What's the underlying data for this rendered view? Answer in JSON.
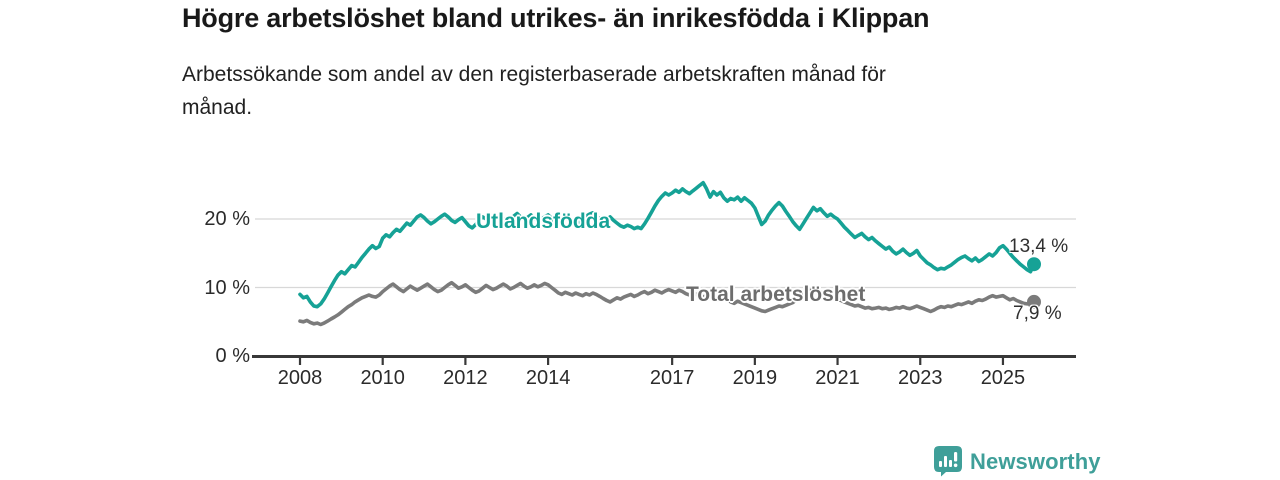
{
  "title": "Högre arbetslöshet bland utrikes- än inrikesfödda i Klippan",
  "subtitle": "Arbetssökande som andel av den registerbaserade arbetskraften månad för månad.",
  "logo": {
    "text": "Newsworthy",
    "icon": "newsworthy-speech-bubble-bar-chart-icon",
    "color": "#3f9f99"
  },
  "colors": {
    "accent_teal": "#16a296",
    "series_gray": "#7b7b7b",
    "series_gray_label": "#6d6d6d",
    "axis": "#383838",
    "gridline": "#d8d8d8",
    "tick_text": "#2b2b2b"
  },
  "chart_data": {
    "type": "line",
    "title": "Högre arbetslöshet bland utrikes- än inrikesfödda i Klippan",
    "subtitle": "Arbetssökande som andel av den registerbaserade arbetskraften månad för månad.",
    "x_unit": "month",
    "x_start_year": 2008,
    "x_start_month": 1,
    "x_end_year": 2025,
    "x_end_month": 10,
    "ylim": [
      0,
      27
    ],
    "grid": "horizontal",
    "y_ticks": [
      {
        "label": "0 %",
        "value": 0
      },
      {
        "label": "10 %",
        "value": 10
      },
      {
        "label": "20 %",
        "value": 20
      }
    ],
    "x_ticks": [
      {
        "label": "2008",
        "year": 2008
      },
      {
        "label": "2010",
        "year": 2010
      },
      {
        "label": "2012",
        "year": 2012
      },
      {
        "label": "2014",
        "year": 2014
      },
      {
        "label": "2017",
        "year": 2017
      },
      {
        "label": "2019",
        "year": 2019
      },
      {
        "label": "2021",
        "year": 2021
      },
      {
        "label": "2023",
        "year": 2023
      },
      {
        "label": "2025",
        "year": 2025
      }
    ],
    "series": [
      {
        "name": "Utlandsfödda",
        "label": "Utlandsfödda",
        "end_label": "13,4 %",
        "end_value": 13.4,
        "color": "#16a296",
        "label_color": "#16a296",
        "values": [
          9.0,
          8.5,
          8.7,
          7.9,
          7.3,
          7.2,
          7.6,
          8.3,
          9.2,
          10.1,
          11.0,
          11.8,
          12.3,
          12.0,
          12.6,
          13.2,
          13.0,
          13.7,
          14.4,
          15.0,
          15.6,
          16.1,
          15.7,
          16.0,
          17.2,
          17.7,
          17.4,
          18.0,
          18.5,
          18.2,
          18.8,
          19.4,
          19.1,
          19.7,
          20.3,
          20.6,
          20.2,
          19.7,
          19.3,
          19.6,
          20.0,
          20.4,
          20.7,
          20.3,
          19.8,
          19.5,
          19.9,
          20.2,
          19.6,
          19.0,
          18.7,
          19.2,
          19.8,
          20.3,
          20.0,
          19.5,
          19.8,
          20.2,
          20.5,
          20.1,
          19.7,
          20.0,
          20.4,
          20.8,
          20.3,
          19.9,
          20.2,
          20.6,
          20.1,
          19.8,
          20.0,
          20.3,
          20.6,
          20.1,
          19.7,
          19.4,
          19.8,
          20.2,
          19.9,
          19.5,
          19.2,
          19.6,
          20.0,
          20.4,
          20.7,
          20.9,
          20.4,
          20.0,
          19.6,
          19.9,
          20.3,
          19.8,
          19.4,
          19.0,
          18.8,
          19.1,
          18.9,
          18.6,
          18.8,
          18.6,
          19.3,
          20.1,
          21.0,
          21.9,
          22.7,
          23.3,
          23.8,
          23.5,
          23.8,
          24.2,
          23.9,
          24.4,
          24.0,
          23.7,
          24.1,
          24.5,
          24.9,
          25.3,
          24.4,
          23.2,
          24.0,
          23.5,
          23.9,
          23.1,
          22.6,
          23.0,
          22.8,
          23.2,
          22.6,
          23.1,
          22.7,
          22.3,
          21.6,
          20.4,
          19.2,
          19.7,
          20.6,
          21.3,
          21.9,
          22.4,
          21.9,
          21.1,
          20.4,
          19.6,
          19.0,
          18.5,
          19.3,
          20.1,
          20.9,
          21.7,
          21.2,
          21.5,
          20.9,
          20.4,
          20.7,
          20.3,
          20.0,
          19.4,
          18.8,
          18.3,
          17.8,
          17.3,
          17.6,
          17.9,
          17.4,
          17.0,
          17.3,
          16.8,
          16.4,
          16.0,
          15.6,
          15.9,
          15.3,
          14.9,
          15.2,
          15.6,
          15.1,
          14.7,
          15.0,
          15.4,
          14.6,
          14.1,
          13.6,
          13.3,
          12.9,
          12.6,
          12.8,
          12.7,
          13.0,
          13.3,
          13.7,
          14.1,
          14.4,
          14.6,
          14.2,
          13.9,
          14.3,
          13.8,
          14.1,
          14.5,
          14.9,
          14.6,
          15.1,
          15.8,
          16.1,
          15.6,
          15.0,
          14.4,
          13.9,
          13.4,
          13.0,
          12.6,
          12.3,
          13.4
        ]
      },
      {
        "name": "Total arbetslöshet",
        "label": "Total arbetslöshet",
        "end_label": "7,9 %",
        "end_value": 7.9,
        "color": "#7b7b7b",
        "label_color": "#6d6d6d",
        "values": [
          5.1,
          5.0,
          5.2,
          4.9,
          4.7,
          4.8,
          4.6,
          4.8,
          5.1,
          5.4,
          5.7,
          6.0,
          6.4,
          6.8,
          7.2,
          7.5,
          7.9,
          8.2,
          8.5,
          8.7,
          8.9,
          8.7,
          8.6,
          8.9,
          9.4,
          9.8,
          10.2,
          10.5,
          10.1,
          9.7,
          9.4,
          9.8,
          10.2,
          9.9,
          9.6,
          9.9,
          10.2,
          10.5,
          10.1,
          9.7,
          9.4,
          9.6,
          10.0,
          10.4,
          10.7,
          10.3,
          9.9,
          10.1,
          10.4,
          10.0,
          9.6,
          9.3,
          9.5,
          9.9,
          10.3,
          10.0,
          9.7,
          9.9,
          10.2,
          10.5,
          10.2,
          9.8,
          10.0,
          10.3,
          10.6,
          10.2,
          9.9,
          10.1,
          10.4,
          10.1,
          10.3,
          10.6,
          10.4,
          10.0,
          9.6,
          9.2,
          9.0,
          9.3,
          9.1,
          8.9,
          9.2,
          9.0,
          8.8,
          9.1,
          8.9,
          9.2,
          9.0,
          8.7,
          8.4,
          8.1,
          7.9,
          8.2,
          8.5,
          8.3,
          8.6,
          8.8,
          9.0,
          8.7,
          8.9,
          9.2,
          9.4,
          9.1,
          9.3,
          9.6,
          9.4,
          9.2,
          9.5,
          9.7,
          9.5,
          9.3,
          9.6,
          9.4,
          9.1,
          8.9,
          9.2,
          9.0,
          8.8,
          8.6,
          8.9,
          8.7,
          8.5,
          8.3,
          8.1,
          8.4,
          8.2,
          7.9,
          7.7,
          8.0,
          7.8,
          7.6,
          7.4,
          7.2,
          7.0,
          6.8,
          6.6,
          6.5,
          6.7,
          6.9,
          7.1,
          7.3,
          7.2,
          7.4,
          7.6,
          7.8,
          8.2,
          8.6,
          9.0,
          9.4,
          9.6,
          9.8,
          9.5,
          9.3,
          9.1,
          8.9,
          8.7,
          8.5,
          8.3,
          8.1,
          7.9,
          7.7,
          7.5,
          7.3,
          7.4,
          7.2,
          7.0,
          7.1,
          6.9,
          7.0,
          7.1,
          6.9,
          7.0,
          6.8,
          6.9,
          7.1,
          7.0,
          7.2,
          7.0,
          6.9,
          7.1,
          7.3,
          7.1,
          6.9,
          6.7,
          6.5,
          6.7,
          7.0,
          7.2,
          7.1,
          7.3,
          7.2,
          7.4,
          7.6,
          7.5,
          7.7,
          7.9,
          7.7,
          8.0,
          8.2,
          8.1,
          8.3,
          8.6,
          8.8,
          8.6,
          8.7,
          8.8,
          8.5,
          8.2,
          8.4,
          8.1,
          7.9,
          7.7,
          7.6,
          7.8,
          7.9
        ]
      }
    ]
  }
}
